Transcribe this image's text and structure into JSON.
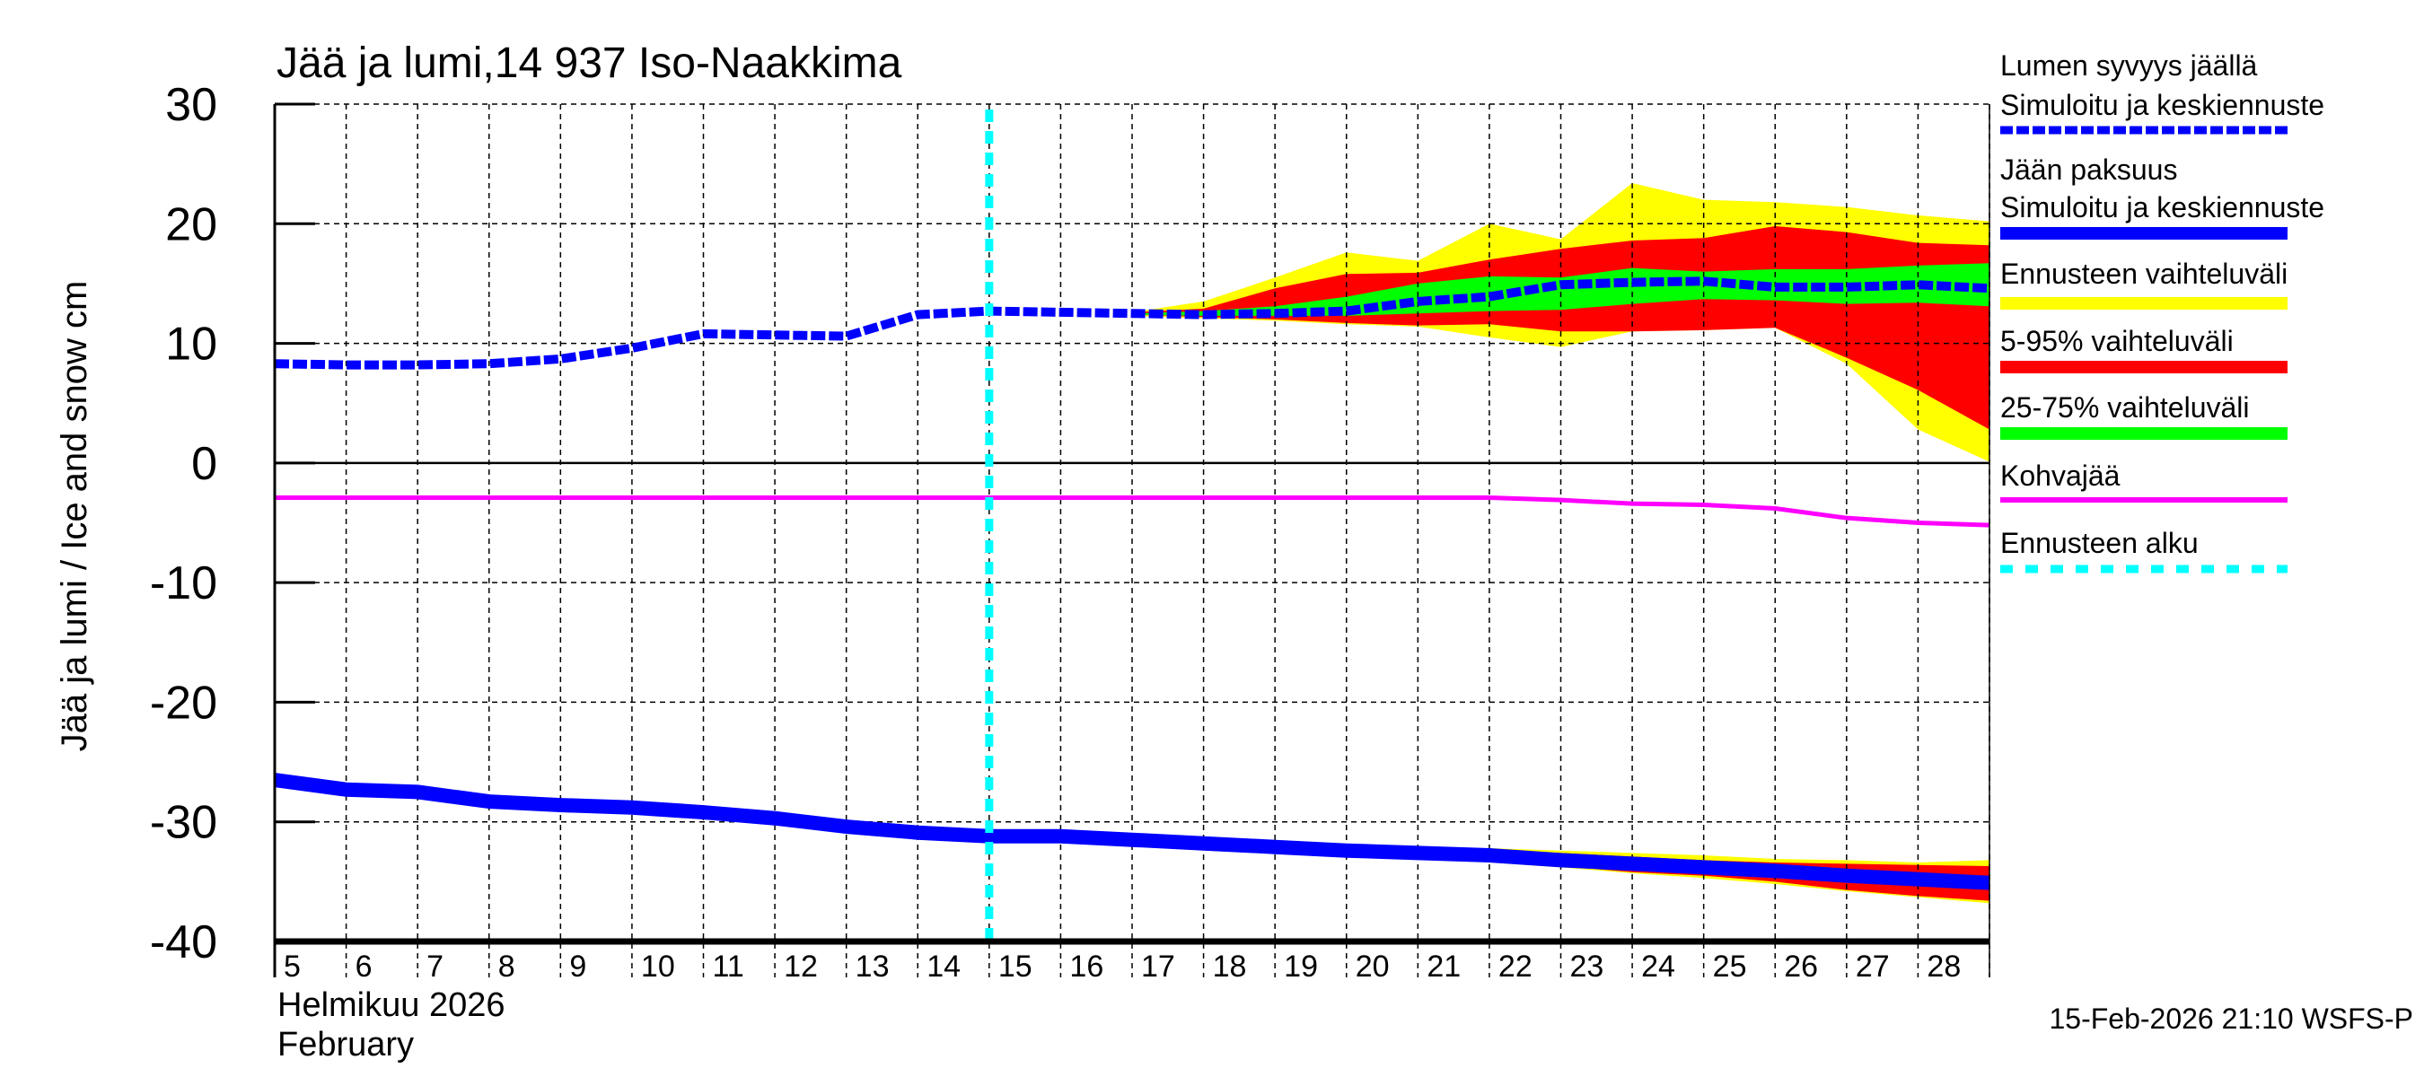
{
  "chart_data": {
    "type": "area",
    "title": "Jää ja lumi,14 937 Iso-Naakkima",
    "ylabel": "Jää ja lumi / Ice and snow    cm",
    "xlabel_line1": "Helmikuu  2026",
    "xlabel_line2": "February",
    "footer": "15-Feb-2026 21:10 WSFS-P",
    "ylim": [
      -40,
      30
    ],
    "yticks": [
      "30",
      "20",
      "10",
      "0",
      "-10",
      "-20",
      "-30",
      "-40"
    ],
    "ytick_values": [
      30,
      20,
      10,
      0,
      -10,
      -20,
      -30,
      -40
    ],
    "grid": true,
    "legend_placement": "right",
    "x": [
      "2026-02-05",
      "2026-02-06",
      "2026-02-07",
      "2026-02-08",
      "2026-02-09",
      "2026-02-10",
      "2026-02-11",
      "2026-02-12",
      "2026-02-13",
      "2026-02-14",
      "2026-02-15",
      "2026-02-16",
      "2026-02-17",
      "2026-02-18",
      "2026-02-19",
      "2026-02-20",
      "2026-02-21",
      "2026-02-22",
      "2026-02-23",
      "2026-02-24",
      "2026-02-25",
      "2026-02-26",
      "2026-02-27",
      "2026-02-28",
      "2026-03-01"
    ],
    "xtick_labels": [
      "5",
      "6",
      "7",
      "8",
      "9",
      "10",
      "11",
      "12",
      "13",
      "14",
      "15",
      "16",
      "17",
      "18",
      "19",
      "20",
      "21",
      "22",
      "23",
      "24",
      "25",
      "26",
      "27",
      "28"
    ],
    "forecast_start": "2026-02-15",
    "colors": {
      "snow": "#0000ff",
      "ice": "#0000ff",
      "range_full": "#ffff00",
      "range_5_95": "#ff0000",
      "range_25_75": "#00ff00",
      "slush": "#ff00ff",
      "forecast_start": "#00ffff"
    },
    "legend": [
      {
        "label1": "Lumen syvyys jäällä",
        "label2": "Simuloitu ja keskiennuste",
        "style": "dashed-blue"
      },
      {
        "label1": "Jään paksuus",
        "label2": "Simuloitu ja keskiennuste",
        "style": "solid-blue"
      },
      {
        "label1": "Ennusteen vaihteluväli",
        "style": "yellow"
      },
      {
        "label1": "5-95% vaihteluväli",
        "style": "red"
      },
      {
        "label1": "25-75% vaihteluväli",
        "style": "green"
      },
      {
        "label1": "Kohvajää",
        "style": "magenta"
      },
      {
        "label1": "Ennusteen alku",
        "style": "dashed-cyan"
      }
    ],
    "snow_depth": [
      8.3,
      8.2,
      8.2,
      8.3,
      8.7,
      9.6,
      10.8,
      10.7,
      10.6,
      12.4,
      12.7,
      12.6,
      12.5,
      12.4,
      12.5,
      12.7,
      13.5,
      13.9,
      14.9,
      15.1,
      15.2,
      14.7,
      14.7,
      14.9,
      14.6
    ],
    "ice_thickness": [
      -26.5,
      -27.3,
      -27.5,
      -28.3,
      -28.6,
      -28.8,
      -29.2,
      -29.7,
      -30.4,
      -30.9,
      -31.2,
      -31.2,
      -31.5,
      -31.8,
      -32.1,
      -32.4,
      -32.6,
      -32.8,
      -33.2,
      -33.5,
      -33.8,
      -34.1,
      -34.5,
      -34.8,
      -35.1
    ],
    "slush_ice": [
      -2.9,
      -2.9,
      -2.9,
      -2.9,
      -2.9,
      -2.9,
      -2.9,
      -2.9,
      -2.9,
      -2.9,
      -2.9,
      -2.9,
      -2.9,
      -2.9,
      -2.9,
      -2.9,
      -2.9,
      -2.9,
      -3.1,
      -3.4,
      -3.5,
      -3.8,
      -4.6,
      -5.0,
      -5.2
    ],
    "snow_bands": {
      "x": [
        "2026-02-17",
        "2026-02-18",
        "2026-02-19",
        "2026-02-20",
        "2026-02-21",
        "2026-02-22",
        "2026-02-23",
        "2026-02-24",
        "2026-02-25",
        "2026-02-26",
        "2026-02-27",
        "2026-02-28",
        "2026-03-01"
      ],
      "full_upper": [
        12.6,
        13.5,
        15.5,
        17.6,
        16.9,
        20.0,
        18.7,
        23.4,
        22.0,
        21.8,
        21.4,
        20.7,
        20.2
      ],
      "p95": [
        12.6,
        12.9,
        14.6,
        15.8,
        15.9,
        17.0,
        17.9,
        18.6,
        18.8,
        19.8,
        19.3,
        18.4,
        18.2
      ],
      "p75": [
        12.5,
        12.7,
        13.1,
        13.9,
        15.0,
        15.6,
        15.5,
        16.3,
        16.0,
        16.2,
        16.2,
        16.5,
        16.7
      ],
      "p25": [
        12.4,
        12.3,
        12.3,
        12.3,
        12.5,
        12.7,
        12.8,
        13.3,
        13.7,
        13.6,
        13.3,
        13.4,
        13.1
      ],
      "p5": [
        12.4,
        12.2,
        12.0,
        11.7,
        11.5,
        11.6,
        11.0,
        11.0,
        11.1,
        11.3,
        8.8,
        6.1,
        2.8
      ],
      "full_lower": [
        12.3,
        12.1,
        11.9,
        11.6,
        11.4,
        10.5,
        9.7,
        11.0,
        11.1,
        11.3,
        8.3,
        2.8,
        0.1
      ]
    },
    "ice_bands": {
      "x": [
        "2026-02-21",
        "2026-02-22",
        "2026-02-23",
        "2026-02-24",
        "2026-02-25",
        "2026-02-26",
        "2026-02-27",
        "2026-02-28",
        "2026-03-01"
      ],
      "full_upper": [
        -32.4,
        -32.2,
        -32.4,
        -32.6,
        -32.8,
        -33.1,
        -33.2,
        -33.4,
        -33.2
      ],
      "p95": [
        -32.5,
        -32.4,
        -32.6,
        -32.9,
        -33.2,
        -33.4,
        -33.5,
        -33.6,
        -33.7
      ],
      "p5": [
        -32.8,
        -33.3,
        -33.7,
        -34.2,
        -34.5,
        -35.0,
        -35.7,
        -36.2,
        -36.6
      ],
      "full_lower": [
        -32.9,
        -33.4,
        -33.8,
        -34.3,
        -34.7,
        -35.2,
        -35.8,
        -36.3,
        -36.8
      ]
    }
  }
}
